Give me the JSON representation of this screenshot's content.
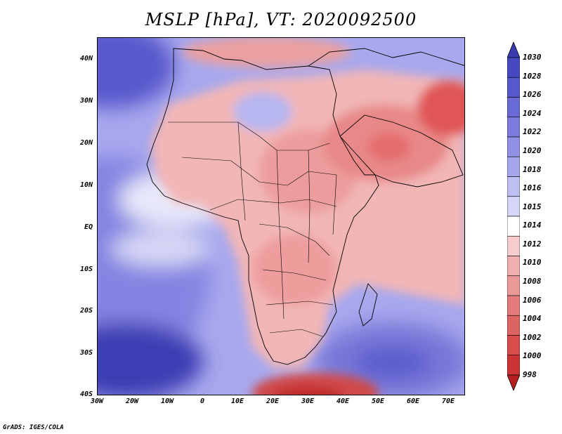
{
  "title": "MSLP [hPa], VT: 2020092500",
  "credit": "GrADS: IGES/COLA",
  "map": {
    "lon_labels": [
      "30W",
      "20W",
      "10W",
      "0",
      "10E",
      "20E",
      "30E",
      "40E",
      "50E",
      "60E",
      "70E"
    ],
    "lat_labels": [
      "40N",
      "30N",
      "20N",
      "10N",
      "EQ",
      "10S",
      "20S",
      "30S",
      "40S"
    ],
    "colors": {
      "ocean_high": "#7070dc",
      "ocean_mid": "#a8a8ee",
      "near_neutral": "#e8e8fa",
      "land_low": "#f2b6b6",
      "low_core": "#e05656",
      "deep_low": "#c82828",
      "boundaries": "#000000"
    }
  },
  "colorbar": {
    "labels": [
      "1030",
      "1028",
      "1026",
      "1024",
      "1022",
      "1020",
      "1018",
      "1016",
      "1015",
      "1014",
      "1012",
      "1010",
      "1008",
      "1006",
      "1004",
      "1002",
      "1000",
      "998"
    ],
    "colors": [
      "#3a3ab0",
      "#4848c0",
      "#5858cc",
      "#6a6ad6",
      "#7c7cde",
      "#9090e4",
      "#a6a6ec",
      "#bebef2",
      "#d6d6f8",
      "#ffffff",
      "#f6cccc",
      "#f0b0b0",
      "#ea9898",
      "#e47c7c",
      "#de6464",
      "#d84c4c",
      "#cc3434",
      "#b82020"
    ]
  }
}
